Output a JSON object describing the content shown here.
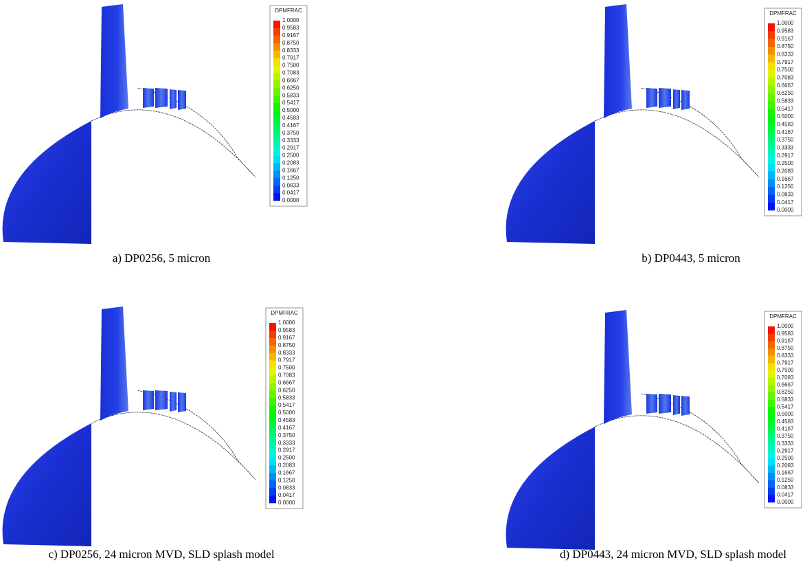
{
  "legend": {
    "title": "DPMFRAC",
    "labels": [
      "1.0000",
      "0.9583",
      "0.9167",
      "0.8750",
      "0.8333",
      "0.7917",
      "0.7500",
      "0.7083",
      "0.6667",
      "0.6250",
      "0.5833",
      "0.5417",
      "0.5000",
      "0.4583",
      "0.4167",
      "0.3750",
      "0.3333",
      "0.2917",
      "0.2500",
      "0.2083",
      "0.1667",
      "0.1250",
      "0.0833",
      "0.0417",
      "0.0000"
    ]
  },
  "panels": [
    {
      "caption": "a)  DP0256, 5 micron"
    },
    {
      "caption": "b) DP0443, 5 micron"
    },
    {
      "caption": "c) DP0256, 24 micron MVD, SLD splash model"
    },
    {
      "caption": "d) DP0443, 24 micron MVD, SLD splash model"
    }
  ]
}
